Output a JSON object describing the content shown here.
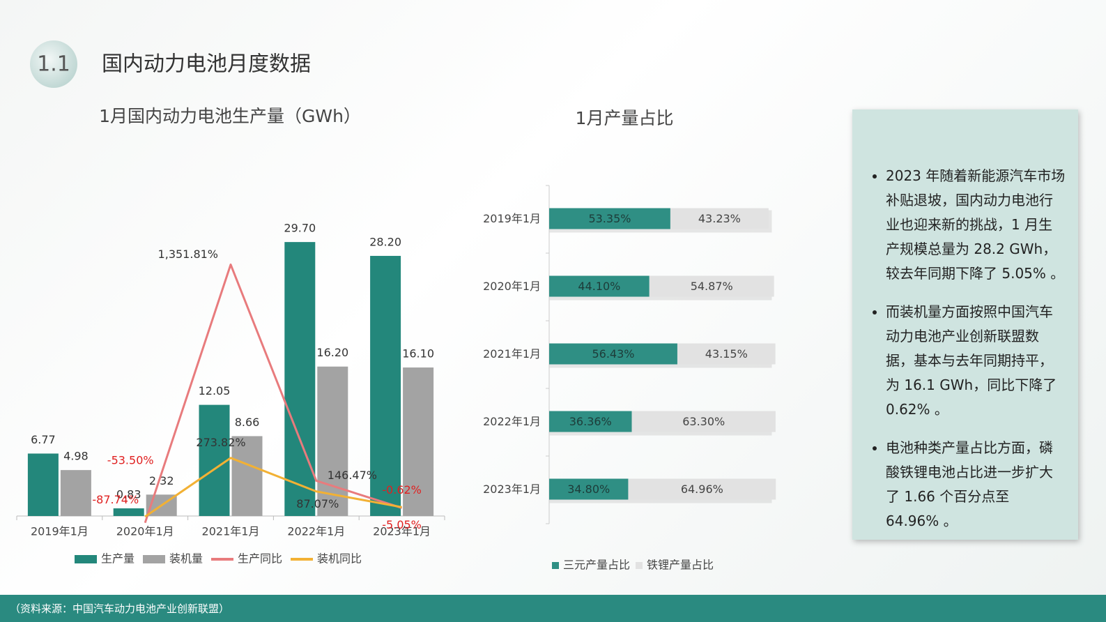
{
  "header": {
    "number": "1.1",
    "title": "国内动力电池月度数据"
  },
  "chart_data": [
    {
      "type": "bar",
      "title": "1月国内动力电池生产量（GWh）",
      "categories": [
        "2019年1月",
        "2020年1月",
        "2021年1月",
        "2022年1月",
        "2023年1月"
      ],
      "ylim": [
        0,
        35
      ],
      "y2lim": [
        -50,
        1750
      ],
      "legend": "bottom",
      "series": [
        {
          "name": "生产量",
          "color": "#23877b",
          "values": [
            6.77,
            0.83,
            12.05,
            29.7,
            28.2
          ],
          "value_labels": [
            "6.77",
            "0.83",
            "12.05",
            "29.70",
            "28.20"
          ]
        },
        {
          "name": "装机量",
          "color": "#a3a3a3",
          "values": [
            4.98,
            2.32,
            8.66,
            16.2,
            16.1
          ],
          "value_labels": [
            "4.98",
            "2.32",
            "8.66",
            "16.20",
            "16.10"
          ]
        },
        {
          "name": "生产同比",
          "type": "line",
          "axis": "y2",
          "color": "#e87b7d",
          "values": [
            null,
            -87.74,
            1351.81,
            146.47,
            -5.05
          ],
          "value_labels": [
            null,
            "-87.74%",
            "1,351.81%",
            "146.47%",
            "-5.05%"
          ]
        },
        {
          "name": "装机同比",
          "type": "line",
          "axis": "y2",
          "color": "#f2b134",
          "values": [
            null,
            -53.5,
            273.82,
            87.07,
            -0.62
          ],
          "value_labels": [
            null,
            "-53.50%",
            "273.82%",
            "87.07%",
            "-0.62%"
          ]
        }
      ]
    },
    {
      "type": "bar",
      "orientation": "horizontal",
      "stacked": true,
      "title": "1月产量占比",
      "categories": [
        "2019年1月",
        "2020年1月",
        "2021年1月",
        "2022年1月",
        "2023年1月"
      ],
      "xlim": [
        0,
        100
      ],
      "legend": "bottom",
      "series": [
        {
          "name": "三元产量占比",
          "color": "#2f8f84",
          "values": [
            53.35,
            44.1,
            56.43,
            36.36,
            34.8
          ],
          "value_labels": [
            "53.35%",
            "44.10%",
            "56.43%",
            "36.36%",
            "34.80%"
          ]
        },
        {
          "name": "铁锂产量占比",
          "color": "#e2e2e2",
          "values": [
            43.23,
            54.87,
            43.15,
            63.3,
            64.96
          ],
          "value_labels": [
            "43.23%",
            "54.87%",
            "43.15%",
            "63.30%",
            "64.96%"
          ]
        }
      ]
    }
  ],
  "panel": {
    "bullets": [
      "2023 年随着新能源汽车市场补贴退坡，国内动力电池行业也迎来新的挑战，1 月生产规模总量为 28.2 GWh，较去年同期下降了 5.05% 。",
      "而装机量方面按照中国汽车动力电池产业创新联盟数据，基本与去年同期持平，为 16.1 GWh，同比下降了 0.62% 。",
      "电池种类产量占比方面，磷酸铁锂电池占比进一步扩大了 1.66 个百分点至 64.96% 。"
    ]
  },
  "footer": {
    "source": "（资料来源：中国汽车动力电池产业创新联盟）"
  }
}
